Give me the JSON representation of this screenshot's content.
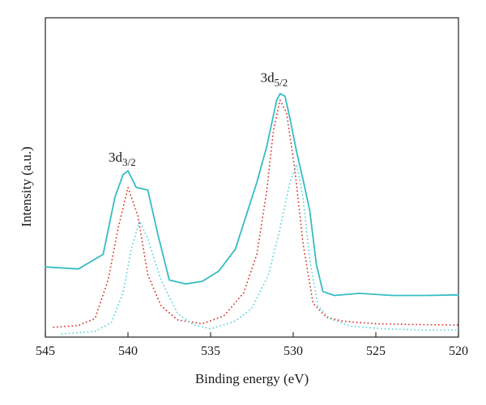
{
  "chart_data": {
    "type": "line",
    "title": "",
    "xlabel": "Binding energy (eV)",
    "ylabel": "Intensity (a.u.)",
    "xlim": [
      545,
      520
    ],
    "ylim": [
      0,
      1
    ],
    "x_reversed": true,
    "grid": false,
    "legend": "none",
    "x_ticks": [
      "545",
      "540",
      "535",
      "530",
      "525",
      "520"
    ],
    "x_tick_values": [
      545,
      540,
      535,
      530,
      525,
      520
    ],
    "annotations": [
      {
        "main": "3d",
        "sub": "3/2",
        "x": 540.0,
        "y": 0.66
      },
      {
        "main": "3d",
        "sub": "5/2",
        "x": 530.8,
        "y": 0.97
      }
    ],
    "series": [
      {
        "style": "solid",
        "color": "#35bdc4",
        "x": [
          545,
          543,
          541.5,
          540.8,
          540.3,
          540.0,
          539.5,
          538.8,
          538.2,
          537.5,
          536.5,
          535.5,
          534.5,
          533.5,
          532.8,
          532.2,
          531.6,
          531.2,
          531.0,
          530.8,
          530.5,
          530.2,
          529.8,
          529.4,
          529.0,
          528.6,
          528.2,
          527.5,
          526,
          524,
          522,
          520
        ],
        "y": [
          0.251,
          0.243,
          0.3,
          0.52,
          0.61,
          0.625,
          0.56,
          0.55,
          0.38,
          0.2,
          0.185,
          0.195,
          0.235,
          0.32,
          0.46,
          0.58,
          0.72,
          0.84,
          0.9,
          0.925,
          0.915,
          0.83,
          0.7,
          0.59,
          0.47,
          0.26,
          0.155,
          0.14,
          0.148,
          0.14,
          0.14,
          0.142
        ]
      },
      {
        "style": "dotted",
        "color": "#d9342b",
        "x": [
          544.5,
          543,
          542,
          541.2,
          540.6,
          540.0,
          539.4,
          538.8,
          538.0,
          537.0,
          535.5,
          534.2,
          533.0,
          532.2,
          531.6,
          531.2,
          530.8,
          530.4,
          529.9,
          529.4,
          528.8,
          528.0,
          527,
          525,
          523,
          520
        ],
        "y": [
          0.016,
          0.023,
          0.05,
          0.2,
          0.4,
          0.56,
          0.45,
          0.22,
          0.1,
          0.045,
          0.03,
          0.06,
          0.15,
          0.3,
          0.55,
          0.78,
          0.9,
          0.85,
          0.63,
          0.34,
          0.11,
          0.055,
          0.04,
          0.03,
          0.027,
          0.025
        ]
      },
      {
        "style": "dotted",
        "color": "#5ad4dc",
        "x": [
          544,
          542,
          541,
          540.3,
          539.8,
          539.3,
          538.8,
          538.0,
          537.0,
          536.0,
          535.0,
          533.5,
          532.5,
          531.5,
          530.8,
          530.2,
          529.8,
          529.4,
          529.0,
          528.5,
          527.8,
          526.5,
          524.5,
          522,
          520
        ],
        "y": [
          -0.01,
          0.0,
          0.035,
          0.15,
          0.32,
          0.43,
          0.36,
          0.2,
          0.07,
          0.025,
          0.01,
          0.04,
          0.09,
          0.22,
          0.4,
          0.58,
          0.65,
          0.52,
          0.28,
          0.1,
          0.05,
          0.02,
          0.01,
          0.005,
          0.006
        ]
      }
    ]
  }
}
